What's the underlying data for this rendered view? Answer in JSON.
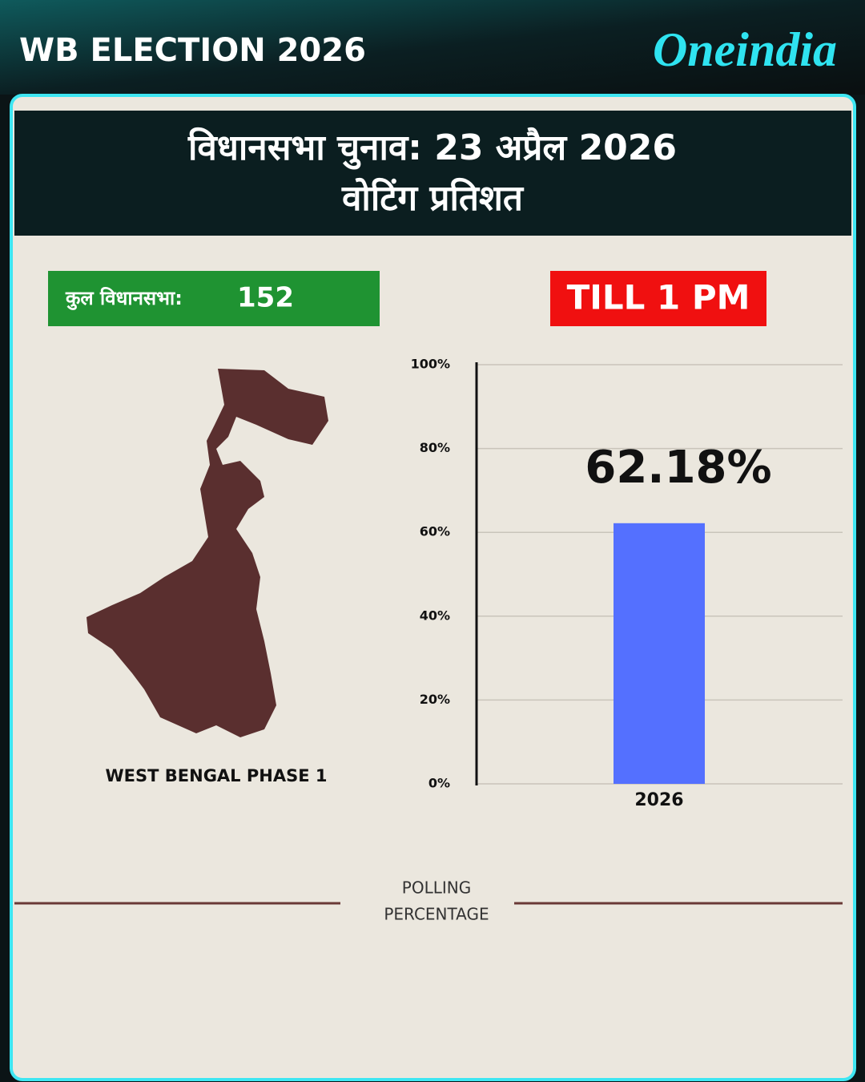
{
  "header": {
    "brand_left": "WB ELECTION 2026",
    "brand_right": "Oneindia"
  },
  "title": [
    "विधानसभा चुनाव: 23 अप्रैल 2026",
    "वोटिंग प्रतिशत"
  ],
  "seats": {
    "label": "कुल विधानसभा:",
    "value": 152
  },
  "time_badge": "TILL 1 PM",
  "map_label": "WEST BENGAL PHASE 1",
  "footer": [
    "POLLING",
    "PERCENTAGE"
  ],
  "chart_data": {
    "type": "bar",
    "categories": [
      "2026"
    ],
    "values": [
      62.18
    ],
    "value_labels": [
      "62.18%"
    ],
    "color": "#5470ff",
    "ylim": [
      0,
      100
    ],
    "yticks": [
      {
        "value": 0,
        "label": "0%"
      },
      {
        "value": 20,
        "label": "20%"
      },
      {
        "value": 40,
        "label": "40%"
      },
      {
        "value": 60,
        "label": "60%"
      },
      {
        "value": 80,
        "label": "80%"
      },
      {
        "value": 100,
        "label": "100%"
      }
    ],
    "grid": true
  }
}
